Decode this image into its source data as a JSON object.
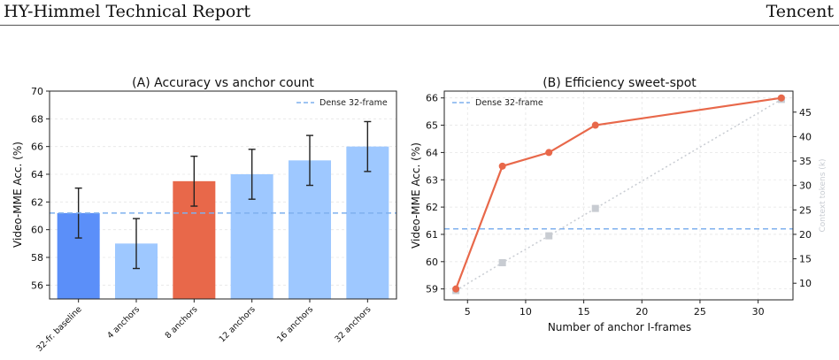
{
  "header": {
    "left_title": "HY-Himmel Technical Report",
    "right_title": "Tencent"
  },
  "colors": {
    "baseline_bar": "#5b8ff9",
    "light_bar": "#9ec8ff",
    "highlight_bar": "#e8684a",
    "dense_line": "#7fb0ee",
    "accuracy_line": "#e8684a",
    "tokens_line": "#c8ccd2"
  },
  "chart_data": [
    {
      "type": "bar",
      "title": "(A) Accuracy vs anchor count",
      "ylabel": "Video-MME Acc. (%)",
      "xlabel": "",
      "ylim": [
        55,
        70
      ],
      "yticks": [
        "56",
        "58",
        "60",
        "62",
        "64",
        "66",
        "68",
        "70"
      ],
      "categories": [
        "32-fr. baseline",
        "4  anchors",
        "8  anchors",
        "12 anchors",
        "16 anchors",
        "32 anchors"
      ],
      "values": [
        61.2,
        59.0,
        63.5,
        64.0,
        65.0,
        66.0
      ],
      "errors": [
        1.8,
        1.8,
        1.8,
        1.8,
        1.8,
        1.8
      ],
      "bar_colors": [
        "baseline",
        "light",
        "highlight",
        "light",
        "light",
        "light"
      ],
      "reference_line": {
        "name": "Dense 32-frame",
        "value": 61.2
      },
      "legend_position": "top-right",
      "grid": true
    },
    {
      "type": "line",
      "title": "(B) Efficiency sweet-spot",
      "xlabel": "Number of anchor I-frames",
      "ylabel": "Video-MME Acc. (%)",
      "y2label": "Context tokens (k)",
      "xlim": [
        3,
        33
      ],
      "ylim": [
        58.6,
        66.25
      ],
      "y2lim": [
        6.6,
        49.3
      ],
      "xticks": [
        "5",
        "10",
        "15",
        "20",
        "25",
        "30"
      ],
      "yticks": [
        "59",
        "60",
        "61",
        "62",
        "63",
        "64",
        "65",
        "66"
      ],
      "y2ticks": [
        "10",
        "15",
        "20",
        "25",
        "30",
        "35",
        "40",
        "45"
      ],
      "series": [
        {
          "axis": "left",
          "x": [
            4,
            8,
            12,
            16,
            32
          ],
          "values": [
            59.0,
            63.5,
            64.0,
            65.0,
            66.0
          ]
        },
        {
          "axis": "right",
          "x": [
            4,
            8,
            12,
            16,
            32
          ],
          "values": [
            8.5,
            14.2,
            19.7,
            25.3,
            47.6
          ]
        }
      ],
      "reference_line": {
        "name": "Dense 32-frame",
        "value": 61.2
      },
      "legend_position": "top-left",
      "grid": true
    }
  ]
}
